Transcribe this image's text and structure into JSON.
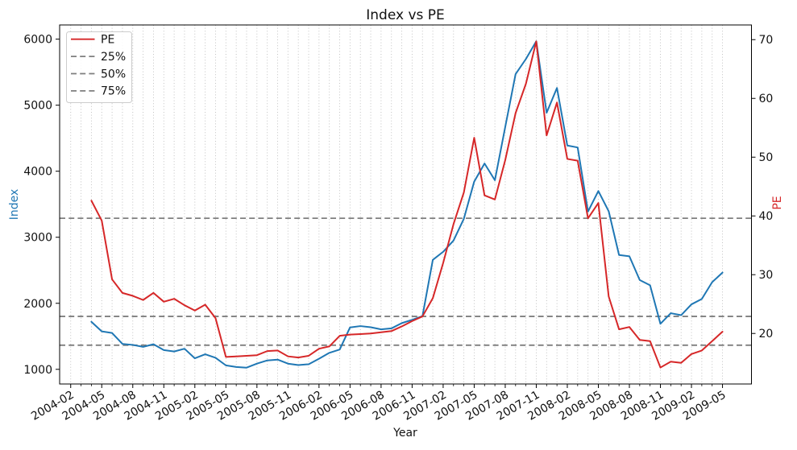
{
  "title": "Index vs PE",
  "xlabel": "Year",
  "ylabel_left": "Index",
  "ylabel_right": "PE",
  "legend": {
    "entries": [
      "PE",
      "25%",
      "50%",
      "75%"
    ],
    "position": "upper left"
  },
  "colors": {
    "index_line": "#1f77b4",
    "pe_line": "#d62728",
    "quantile_line": "#7f7f7f",
    "grid": "#b0b0b0",
    "spine": "#000000",
    "legend_border": "#cccccc",
    "background": "#ffffff"
  },
  "chart_data": {
    "type": "line",
    "title": "Index vs PE",
    "xlabel": "Year",
    "ylabel_left": "Index",
    "ylabel_right": "PE",
    "grid": "vertical dotted gridlines at every month, no horizontal grid",
    "legend_position": "upper left",
    "x": [
      "2004-04",
      "2004-05",
      "2004-06",
      "2004-07",
      "2004-08",
      "2004-09",
      "2004-10",
      "2004-11",
      "2004-12",
      "2005-01",
      "2005-02",
      "2005-03",
      "2005-04",
      "2005-05",
      "2005-06",
      "2005-07",
      "2005-08",
      "2005-09",
      "2005-10",
      "2005-11",
      "2005-12",
      "2006-01",
      "2006-02",
      "2006-03",
      "2006-04",
      "2006-05",
      "2006-06",
      "2006-07",
      "2006-08",
      "2006-09",
      "2006-10",
      "2006-11",
      "2006-12",
      "2007-01",
      "2007-02",
      "2007-03",
      "2007-04",
      "2007-05",
      "2007-06",
      "2007-07",
      "2007-08",
      "2007-09",
      "2007-10",
      "2007-11",
      "2007-12",
      "2008-01",
      "2008-02",
      "2008-03",
      "2008-04",
      "2008-05",
      "2008-06",
      "2008-07",
      "2008-08",
      "2008-09",
      "2008-10",
      "2008-11",
      "2008-12",
      "2009-01",
      "2009-02",
      "2009-03",
      "2009-04",
      "2009-05"
    ],
    "series": [
      {
        "name": "Index",
        "axis": "left",
        "color": "#1f77b4",
        "style": "solid",
        "values": [
          1720,
          1575,
          1550,
          1385,
          1370,
          1340,
          1380,
          1292,
          1270,
          1312,
          1167,
          1228,
          1175,
          1060,
          1035,
          1025,
          1086,
          1135,
          1147,
          1086,
          1065,
          1077,
          1160,
          1250,
          1300,
          1635,
          1655,
          1637,
          1605,
          1620,
          1700,
          1750,
          1805,
          2658,
          2780,
          2950,
          3280,
          3843,
          4117,
          3864,
          4670,
          5470,
          5700,
          5968,
          4885,
          5261,
          4390,
          4360,
          3390,
          3700,
          3394,
          2732,
          2712,
          2352,
          2273,
          1690,
          1850,
          1820,
          1984,
          2066,
          2320,
          2465
        ]
      },
      {
        "name": "PE",
        "axis": "right",
        "color": "#d62728",
        "style": "solid",
        "values": [
          42.6,
          39.2,
          29.2,
          26.9,
          26.4,
          25.7,
          26.9,
          25.4,
          25.9,
          24.8,
          23.9,
          24.9,
          22.6,
          16.0,
          16.1,
          16.2,
          16.3,
          17.0,
          17.1,
          16.1,
          15.9,
          16.2,
          17.4,
          17.8,
          19.6,
          19.8,
          19.9,
          20.0,
          20.2,
          20.4,
          21.2,
          22.1,
          22.9,
          26.0,
          32.0,
          38.6,
          44.0,
          53.3,
          43.5,
          42.8,
          49.5,
          57.5,
          62.5,
          69.7,
          53.7,
          59.3,
          49.7,
          49.4,
          39.6,
          42.2,
          26.3,
          20.7,
          21.1,
          18.9,
          18.7,
          14.2,
          15.2,
          15.0,
          16.5,
          17.1,
          18.7,
          20.3
        ]
      }
    ],
    "quantile_lines": [
      {
        "label": "25%",
        "axis": "right",
        "value": 18.0,
        "style": "dashed",
        "color": "#7f7f7f"
      },
      {
        "label": "50%",
        "axis": "right",
        "value": 22.9,
        "style": "dashed",
        "color": "#7f7f7f"
      },
      {
        "label": "75%",
        "axis": "right",
        "value": 39.6,
        "style": "dashed",
        "color": "#7f7f7f"
      }
    ],
    "x_tick_labels": [
      "2004-02",
      "2004-05",
      "2004-08",
      "2004-11",
      "2005-02",
      "2005-05",
      "2005-08",
      "2005-11",
      "2006-02",
      "2006-05",
      "2006-08",
      "2006-11",
      "2007-02",
      "2007-05",
      "2007-08",
      "2007-11",
      "2008-02",
      "2008-05",
      "2008-08",
      "2008-11",
      "2009-02",
      "2009-05"
    ],
    "left_ticks": [
      1000,
      2000,
      3000,
      4000,
      5000,
      6000
    ],
    "right_ticks": [
      20,
      30,
      40,
      50,
      60,
      70
    ],
    "left_ylim": [
      778,
      6215
    ],
    "right_ylim": [
      11.4,
      72.5
    ]
  }
}
